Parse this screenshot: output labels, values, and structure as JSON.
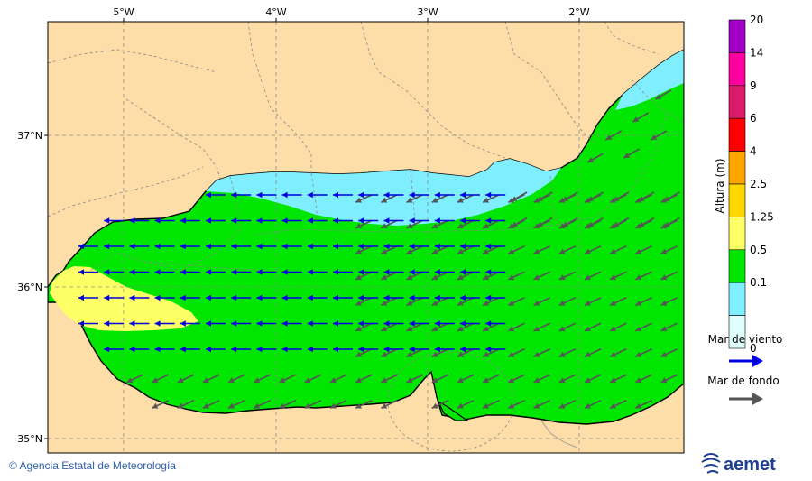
{
  "map": {
    "lon_labels": [
      "5°W",
      "4°W",
      "3°W",
      "2°W"
    ],
    "lat_labels": [
      "37°N",
      "36°N",
      "35°N"
    ]
  },
  "legend": {
    "title": "Altura (m)",
    "scale": [
      {
        "label": "20",
        "color": "#a000c8"
      },
      {
        "label": "14",
        "color": "#ff00a0"
      },
      {
        "label": "9",
        "color": "#dc1a6a"
      },
      {
        "label": "6",
        "color": "#ff0000"
      },
      {
        "label": "4",
        "color": "#ffa500"
      },
      {
        "label": "2.5",
        "color": "#ffd700"
      },
      {
        "label": "1.25",
        "color": "#ffff66"
      },
      {
        "label": "0.5",
        "color": "#00e600"
      },
      {
        "label": "0.1",
        "color": "#7fefff"
      },
      {
        "label": "0",
        "color": "#dfffff"
      }
    ],
    "wind_sea_label": "Mar de viento",
    "swell_label": "Mar de fondo",
    "wind_sea_color": "#0000e0",
    "swell_color": "#555555"
  },
  "footer": {
    "credit": "© Agencia Estatal de Meteorología",
    "brand": "aemet"
  },
  "colors": {
    "land": "#fddda8",
    "sea_green": "#00e600",
    "sea_cyan": "#7fefff",
    "sea_yellow": "#ffff66"
  }
}
